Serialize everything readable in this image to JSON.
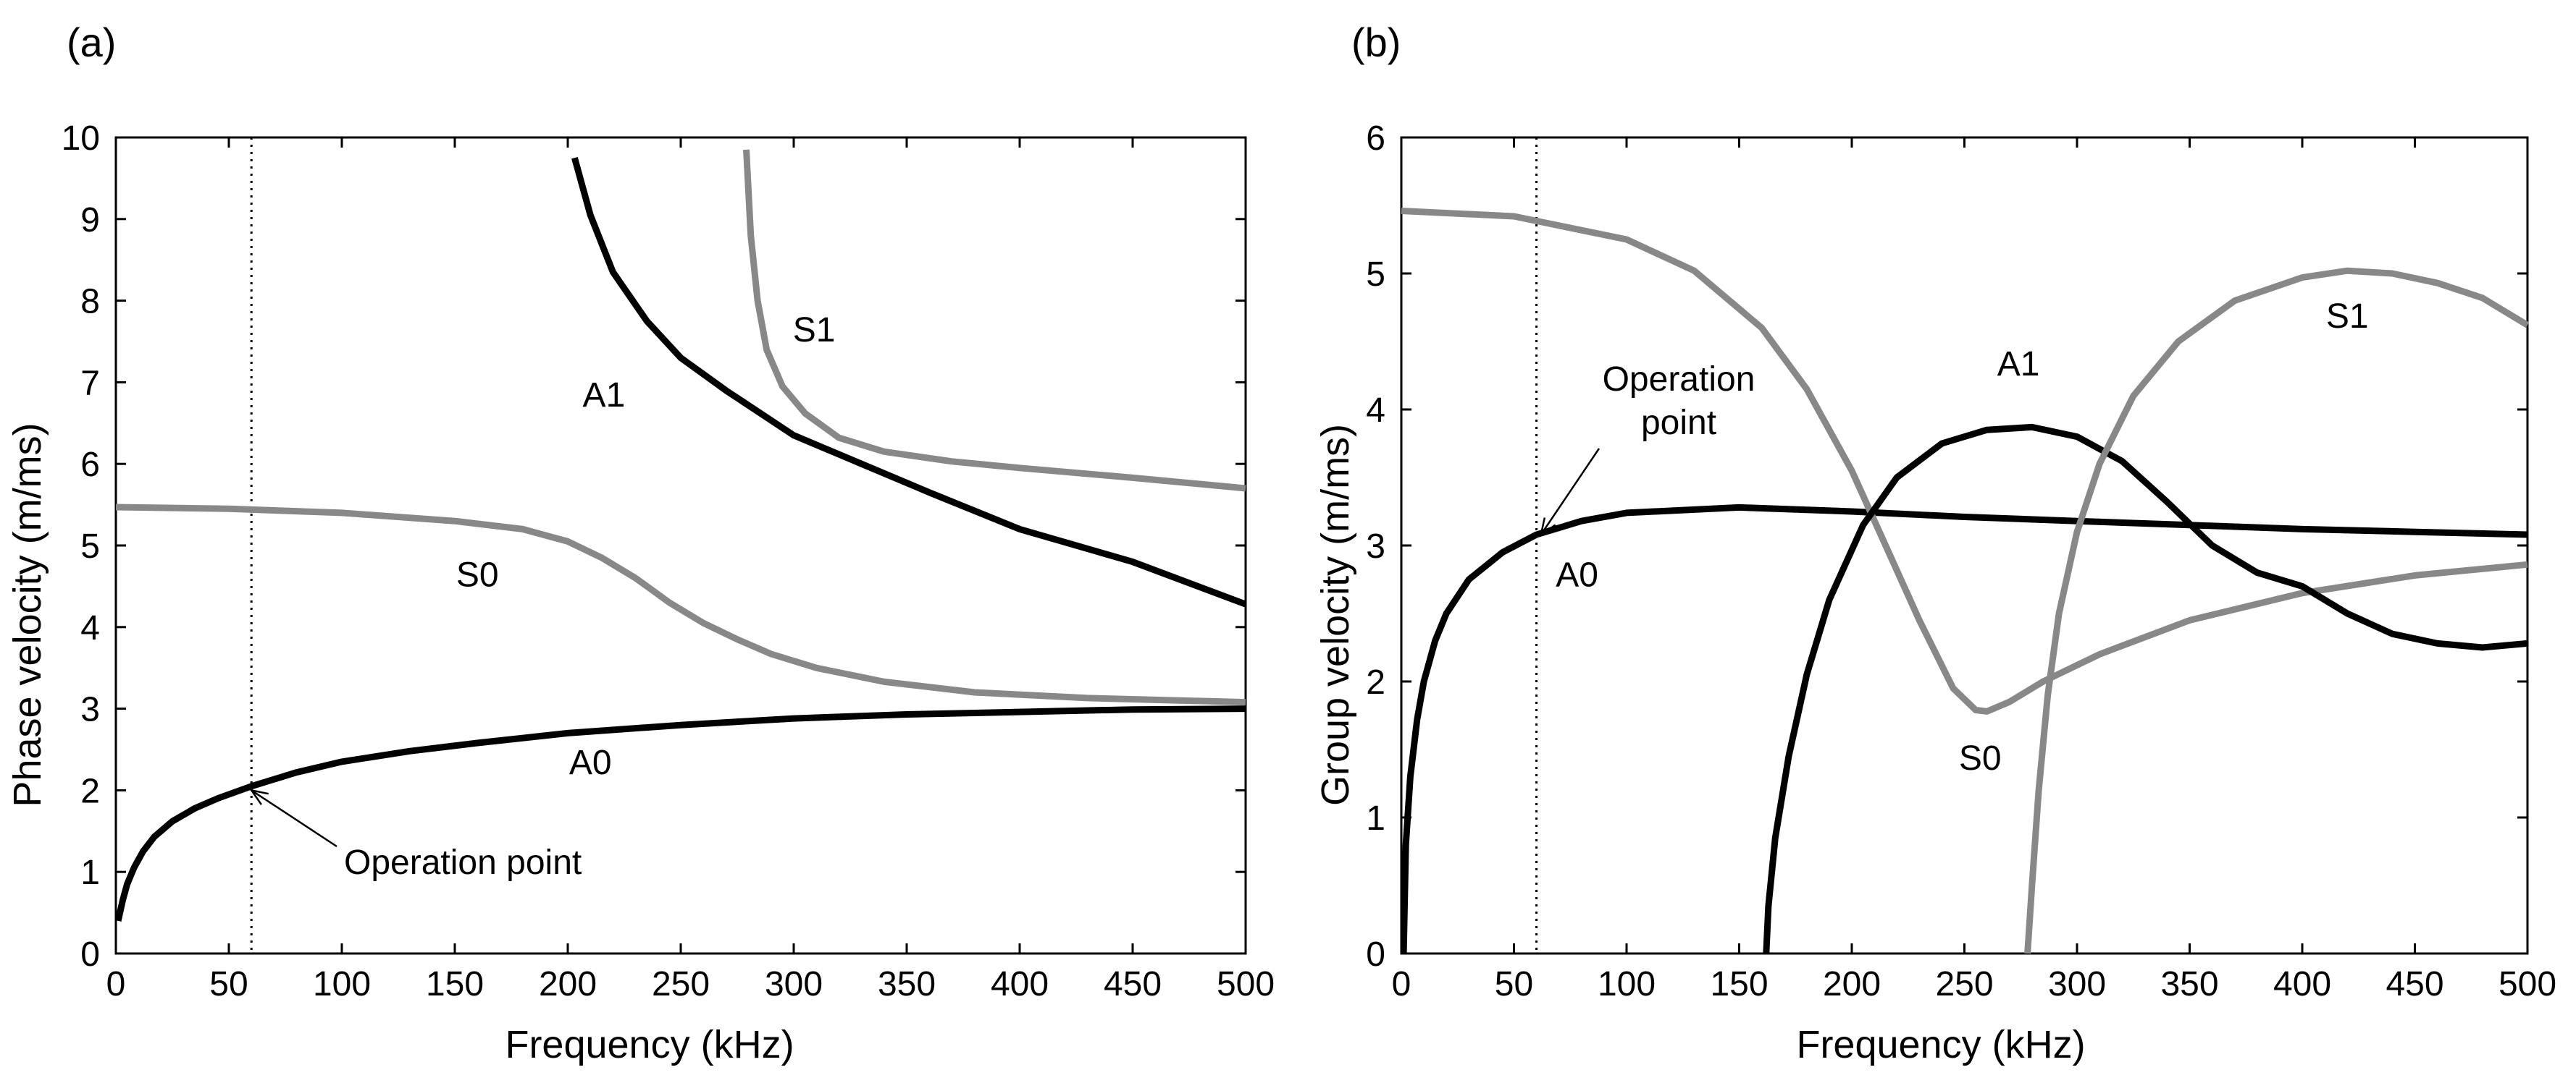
{
  "chart_data": [
    {
      "type": "line",
      "panel_label": "(a)",
      "xlabel": "Frequency (kHz)",
      "ylabel": "Phase velocity (m/ms)",
      "xlim": [
        0,
        500
      ],
      "ylim": [
        0,
        10
      ],
      "xticks": [
        0,
        50,
        100,
        150,
        200,
        250,
        300,
        350,
        400,
        450,
        500
      ],
      "yticks": [
        0,
        1,
        2,
        3,
        4,
        5,
        6,
        7,
        8,
        9,
        10
      ],
      "grid": false,
      "operation_point_x": 60,
      "annotation": {
        "text": "Operation point",
        "x": 60,
        "y": 2.0
      },
      "series": [
        {
          "name": "A0",
          "label_pos": [
            210,
            2.2
          ],
          "color": "#000000",
          "x": [
            1,
            3,
            5,
            8,
            12,
            17,
            25,
            35,
            45,
            60,
            80,
            100,
            130,
            160,
            200,
            250,
            300,
            350,
            400,
            450,
            500
          ],
          "y": [
            0.4,
            0.65,
            0.85,
            1.05,
            1.25,
            1.43,
            1.62,
            1.78,
            1.9,
            2.05,
            2.22,
            2.35,
            2.48,
            2.58,
            2.7,
            2.8,
            2.88,
            2.93,
            2.96,
            2.99,
            3.0
          ]
        },
        {
          "name": "S0",
          "label_pos": [
            160,
            4.5
          ],
          "color": "#888888",
          "x": [
            0,
            50,
            100,
            150,
            180,
            200,
            215,
            230,
            245,
            260,
            275,
            290,
            310,
            340,
            380,
            430,
            500
          ],
          "y": [
            5.47,
            5.45,
            5.4,
            5.3,
            5.2,
            5.05,
            4.85,
            4.6,
            4.3,
            4.05,
            3.85,
            3.67,
            3.5,
            3.33,
            3.2,
            3.13,
            3.08
          ]
        },
        {
          "name": "A1",
          "label_pos": [
            216,
            6.7
          ],
          "color": "#000000",
          "x": [
            203,
            210,
            220,
            235,
            250,
            270,
            300,
            330,
            360,
            400,
            450,
            500
          ],
          "y": [
            9.75,
            9.05,
            8.35,
            7.75,
            7.3,
            6.9,
            6.35,
            6.0,
            5.65,
            5.2,
            4.8,
            4.28
          ]
        },
        {
          "name": "S1",
          "label_pos": [
            309,
            7.5
          ],
          "color": "#888888",
          "x": [
            279,
            281,
            284,
            288,
            295,
            305,
            320,
            340,
            370,
            400,
            450,
            500
          ],
          "y": [
            9.85,
            8.8,
            8.0,
            7.4,
            6.95,
            6.62,
            6.32,
            6.15,
            6.03,
            5.95,
            5.83,
            5.7
          ]
        }
      ]
    },
    {
      "type": "line",
      "panel_label": "(b)",
      "xlabel": "Frequency (kHz)",
      "ylabel": "Group velocity (m/ms)",
      "xlim": [
        0,
        500
      ],
      "ylim": [
        0,
        6
      ],
      "xticks": [
        0,
        50,
        100,
        150,
        200,
        250,
        300,
        350,
        400,
        450,
        500
      ],
      "yticks": [
        0,
        1,
        2,
        3,
        4,
        5,
        6
      ],
      "grid": false,
      "operation_point_x": 60,
      "annotation": {
        "text": "Operation point",
        "x": 62,
        "y": 3.08
      },
      "series": [
        {
          "name": "A0",
          "label_pos": [
            78,
            2.7
          ],
          "color": "#000000",
          "x": [
            1,
            2,
            4,
            7,
            10,
            15,
            20,
            30,
            45,
            60,
            80,
            100,
            150,
            200,
            250,
            300,
            350,
            400,
            450,
            500
          ],
          "y": [
            0.0,
            0.8,
            1.3,
            1.72,
            2.0,
            2.3,
            2.5,
            2.75,
            2.95,
            3.08,
            3.18,
            3.24,
            3.28,
            3.25,
            3.21,
            3.18,
            3.15,
            3.12,
            3.1,
            3.08
          ]
        },
        {
          "name": "S0",
          "label_pos": [
            257,
            1.35
          ],
          "color": "#888888",
          "x": [
            0,
            50,
            100,
            130,
            160,
            180,
            200,
            215,
            230,
            245,
            255,
            260,
            270,
            285,
            310,
            350,
            400,
            450,
            500
          ],
          "y": [
            5.46,
            5.42,
            5.25,
            5.02,
            4.6,
            4.15,
            3.55,
            3.0,
            2.45,
            1.95,
            1.79,
            1.78,
            1.85,
            2.0,
            2.2,
            2.45,
            2.65,
            2.78,
            2.86
          ]
        },
        {
          "name": "A1",
          "label_pos": [
            274,
            4.25
          ],
          "color": "#000000",
          "x": [
            162,
            163,
            166,
            172,
            180,
            190,
            205,
            220,
            240,
            260,
            280,
            300,
            320,
            340,
            360,
            380,
            400,
            420,
            440,
            460,
            480,
            500
          ],
          "y": [
            0.0,
            0.35,
            0.85,
            1.45,
            2.05,
            2.6,
            3.15,
            3.5,
            3.75,
            3.85,
            3.87,
            3.8,
            3.62,
            3.32,
            3.0,
            2.8,
            2.7,
            2.5,
            2.35,
            2.28,
            2.25,
            2.28
          ]
        },
        {
          "name": "S1",
          "label_pos": [
            420,
            4.6
          ],
          "color": "#888888",
          "x": [
            278,
            280,
            283,
            287,
            292,
            300,
            310,
            325,
            345,
            370,
            400,
            420,
            440,
            460,
            480,
            500
          ],
          "y": [
            0.0,
            0.5,
            1.2,
            1.9,
            2.5,
            3.1,
            3.6,
            4.1,
            4.5,
            4.8,
            4.97,
            5.02,
            5.0,
            4.93,
            4.82,
            4.62
          ]
        }
      ]
    }
  ]
}
